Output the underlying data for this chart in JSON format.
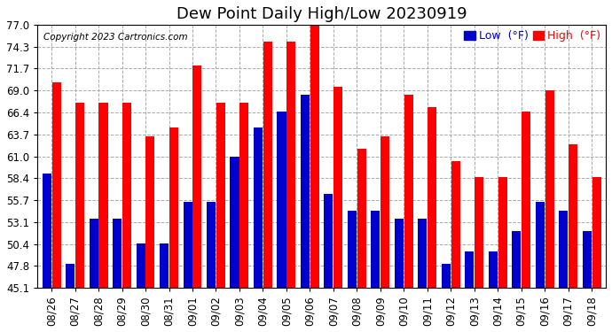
{
  "title": "Dew Point Daily High/Low 20230919",
  "copyright": "Copyright 2023 Cartronics.com",
  "legend_low": "Low",
  "legend_high": "High",
  "dates": [
    "08/26",
    "08/27",
    "08/28",
    "08/29",
    "08/30",
    "08/31",
    "09/01",
    "09/02",
    "09/03",
    "09/04",
    "09/05",
    "09/06",
    "09/07",
    "09/08",
    "09/09",
    "09/10",
    "09/11",
    "09/12",
    "09/13",
    "09/14",
    "09/15",
    "09/16",
    "09/17",
    "09/18"
  ],
  "high": [
    70.0,
    67.5,
    67.5,
    67.5,
    63.5,
    64.5,
    72.0,
    67.5,
    67.5,
    75.0,
    75.0,
    77.0,
    69.5,
    62.0,
    63.5,
    68.5,
    67.0,
    60.5,
    58.5,
    58.5,
    66.5,
    69.0,
    62.5,
    58.5
  ],
  "low": [
    59.0,
    48.0,
    53.5,
    53.5,
    50.5,
    50.5,
    55.5,
    55.5,
    61.0,
    64.5,
    66.5,
    68.5,
    56.5,
    54.5,
    54.5,
    53.5,
    53.5,
    48.0,
    49.5,
    49.5,
    52.0,
    55.5,
    54.5,
    52.0
  ],
  "high_color": "#ff0000",
  "low_color": "#0000cc",
  "ylim_min": 45.1,
  "ylim_max": 77.0,
  "yticks": [
    45.1,
    47.8,
    50.4,
    53.1,
    55.7,
    58.4,
    61.0,
    63.7,
    66.4,
    69.0,
    71.7,
    74.3,
    77.0
  ],
  "background_color": "#ffffff",
  "grid_color": "#aaaaaa",
  "title_fontsize": 13,
  "tick_fontsize": 8.5,
  "copyright_fontsize": 7.5,
  "legend_fontsize": 9
}
